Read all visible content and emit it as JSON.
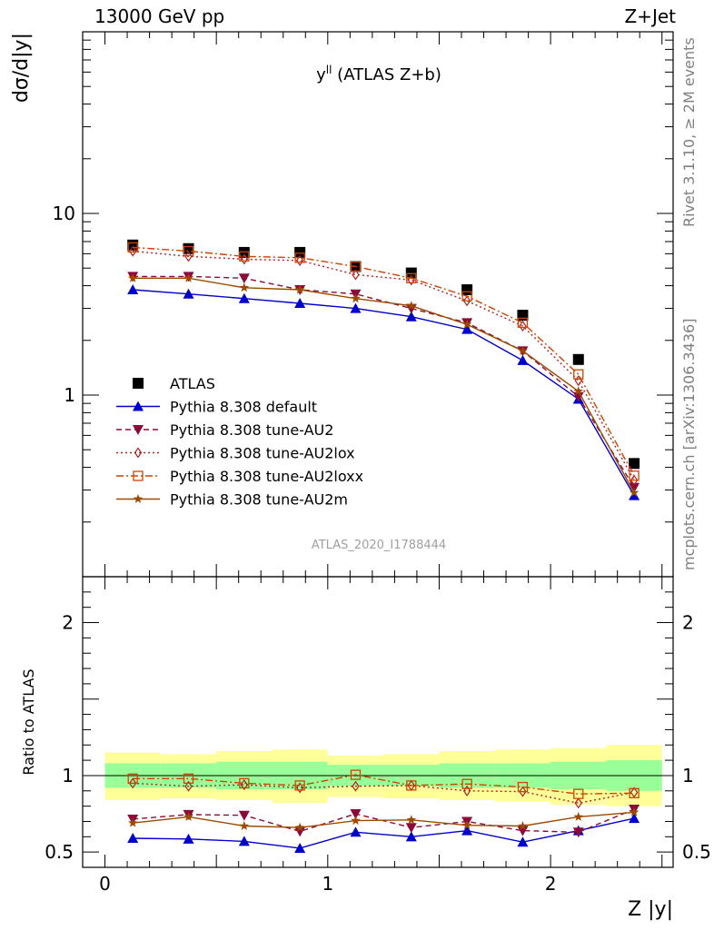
{
  "header": {
    "left": "13000 GeV pp",
    "right": "Z+Jet"
  },
  "sidebar": {
    "rivet": "Rivet 3.1.10, ≥ 2M events",
    "mcplots": "mcplots.cern.ch [arXiv:1306.3436]"
  },
  "chart_data": [
    {
      "type": "scatter",
      "panel": "main",
      "title": "y^ll (ATLAS Z+b)",
      "title_base": "y",
      "title_sup": "ll",
      "title_rest": " (ATLAS Z+b)",
      "ylabel": "dσ/d|y|",
      "yscale": "log",
      "ylim": [
        0.1,
        100
      ],
      "xlim": [
        -0.1,
        2.55
      ],
      "y_tick_labels": [
        "1",
        "10"
      ],
      "watermark": "ATLAS_2020_I1788444",
      "legend_position": "bottom-left",
      "x": [
        0.125,
        0.375,
        0.625,
        0.875,
        1.125,
        1.375,
        1.625,
        1.875,
        2.125,
        2.375
      ],
      "series": [
        {
          "name": "ATLAS",
          "color": "#000000",
          "marker": "square",
          "line": "none",
          "values": [
            6.7,
            6.4,
            6.1,
            6.1,
            5.1,
            4.7,
            3.8,
            2.75,
            1.57,
            0.42
          ]
        },
        {
          "name": "Pythia 8.308 default",
          "color": "#0000cc",
          "marker": "triangle-up",
          "line": "solid",
          "values": [
            3.8,
            3.6,
            3.4,
            3.2,
            3.0,
            2.7,
            2.3,
            1.55,
            0.95,
            0.28
          ]
        },
        {
          "name": "Pythia 8.308 tune-AU2",
          "color": "#8b0a3a",
          "marker": "triangle-down",
          "line": "dashed",
          "values": [
            4.5,
            4.5,
            4.4,
            3.8,
            3.6,
            3.0,
            2.5,
            1.75,
            0.98,
            0.31
          ]
        },
        {
          "name": "Pythia 8.308 tune-AU2lox",
          "color": "#b22222",
          "marker": "diamond-open",
          "line": "dotted",
          "values": [
            6.2,
            5.8,
            5.6,
            5.5,
            4.6,
            4.3,
            3.3,
            2.4,
            1.2,
            0.34
          ]
        },
        {
          "name": "Pythia 8.308 tune-AU2loxx",
          "color": "#cc4400",
          "marker": "square-open",
          "line": "dashdot",
          "values": [
            6.5,
            6.2,
            5.8,
            5.7,
            5.1,
            4.4,
            3.5,
            2.5,
            1.3,
            0.36
          ]
        },
        {
          "name": "Pythia 8.308 tune-AU2m",
          "color": "#9a4a00",
          "marker": "star",
          "line": "solid",
          "values": [
            4.4,
            4.4,
            3.9,
            3.8,
            3.4,
            3.1,
            2.45,
            1.75,
            1.05,
            0.29
          ]
        }
      ]
    },
    {
      "type": "scatter",
      "panel": "ratio",
      "ylabel": "Ratio to ATLAS",
      "xlabel": "Z |y|",
      "ylim": [
        0.4,
        2.3
      ],
      "xlim": [
        -0.1,
        2.55
      ],
      "x_tick_labels": [
        "0",
        "1",
        "2"
      ],
      "y_tick_labels": [
        "0.5",
        "1",
        "2"
      ],
      "bin_edges": [
        0.0,
        0.25,
        0.5,
        0.75,
        1.0,
        1.25,
        1.5,
        1.75,
        2.0,
        2.25,
        2.5
      ],
      "band_inner": {
        "color": "#99ff99",
        "lo": [
          0.92,
          0.92,
          0.91,
          0.91,
          0.93,
          0.93,
          0.92,
          0.92,
          0.91,
          0.9
        ],
        "hi": [
          1.08,
          1.08,
          1.09,
          1.09,
          1.07,
          1.07,
          1.08,
          1.08,
          1.09,
          1.1
        ]
      },
      "band_outer": {
        "color": "#ffff99",
        "lo": [
          0.84,
          0.85,
          0.84,
          0.82,
          0.86,
          0.85,
          0.84,
          0.83,
          0.81,
          0.8
        ],
        "hi": [
          1.15,
          1.14,
          1.16,
          1.17,
          1.13,
          1.14,
          1.16,
          1.17,
          1.18,
          1.2
        ]
      },
      "x": [
        0.125,
        0.375,
        0.625,
        0.875,
        1.125,
        1.375,
        1.625,
        1.875,
        2.125,
        2.375
      ],
      "series": [
        {
          "name": "Pythia 8.308 default",
          "color": "#0000cc",
          "marker": "triangle-up",
          "line": "solid",
          "values": [
            0.59,
            0.585,
            0.57,
            0.525,
            0.63,
            0.6,
            0.64,
            0.565,
            0.64,
            0.72
          ]
        },
        {
          "name": "Pythia 8.308 tune-AU2",
          "color": "#8b0a3a",
          "marker": "triangle-down",
          "line": "dashed",
          "values": [
            0.715,
            0.745,
            0.74,
            0.635,
            0.75,
            0.66,
            0.7,
            0.64,
            0.63,
            0.78
          ]
        },
        {
          "name": "Pythia 8.308 tune-AU2lox",
          "color": "#b22222",
          "marker": "diamond-open",
          "line": "dotted",
          "values": [
            0.95,
            0.93,
            0.94,
            0.92,
            0.93,
            0.935,
            0.9,
            0.895,
            0.82,
            0.89
          ]
        },
        {
          "name": "Pythia 8.308 tune-AU2loxx",
          "color": "#cc4400",
          "marker": "square-open",
          "line": "dashdot",
          "values": [
            0.98,
            0.98,
            0.95,
            0.935,
            1.005,
            0.935,
            0.945,
            0.925,
            0.88,
            0.885
          ]
        },
        {
          "name": "Pythia 8.308 tune-AU2m",
          "color": "#9a4a00",
          "marker": "star",
          "line": "solid",
          "values": [
            0.69,
            0.73,
            0.67,
            0.66,
            0.705,
            0.71,
            0.675,
            0.67,
            0.73,
            0.76
          ]
        }
      ]
    }
  ]
}
